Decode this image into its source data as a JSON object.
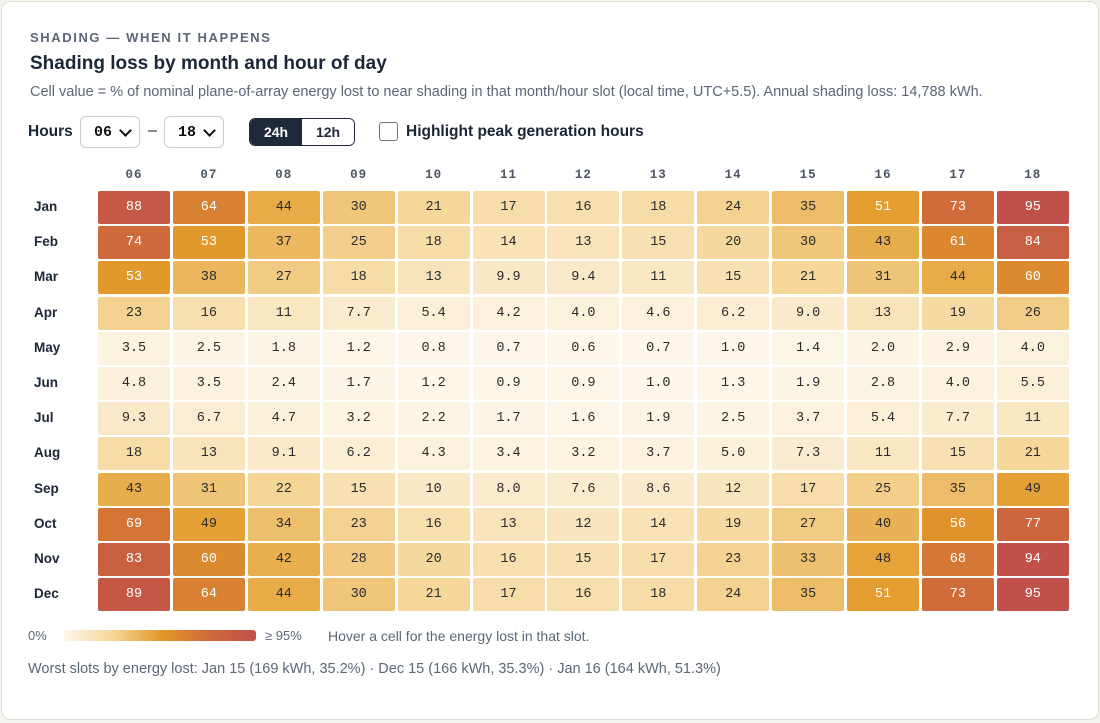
{
  "header": {
    "eyebrow": "SHADING — WHEN IT HAPPENS",
    "title": "Shading loss by month and hour of day",
    "description": "Cell value = % of nominal plane-of-array energy lost to near shading in that month/hour slot (local time, UTC+5.5). Annual shading loss: 14,788 kWh."
  },
  "controls": {
    "hours_label": "Hours",
    "hour_from": "06",
    "separator": "–",
    "hour_to": "18",
    "format_24h": "24h",
    "format_12h": "12h",
    "format_selected": "24h",
    "highlight_label": "Highlight peak generation hours",
    "highlight_checked": false
  },
  "chart_data": {
    "type": "heatmap",
    "x": [
      "06",
      "07",
      "08",
      "09",
      "10",
      "11",
      "12",
      "13",
      "14",
      "15",
      "16",
      "17",
      "18"
    ],
    "y": [
      "Jan",
      "Feb",
      "Mar",
      "Apr",
      "May",
      "Jun",
      "Jul",
      "Aug",
      "Sep",
      "Oct",
      "Nov",
      "Dec"
    ],
    "values": [
      [
        "88",
        "64",
        "44",
        "30",
        "21",
        "17",
        "16",
        "18",
        "24",
        "35",
        "51",
        "73",
        "95"
      ],
      [
        "74",
        "53",
        "37",
        "25",
        "18",
        "14",
        "13",
        "15",
        "20",
        "30",
        "43",
        "61",
        "84"
      ],
      [
        "53",
        "38",
        "27",
        "18",
        "13",
        "9.9",
        "9.4",
        "11",
        "15",
        "21",
        "31",
        "44",
        "60"
      ],
      [
        "23",
        "16",
        "11",
        "7.7",
        "5.4",
        "4.2",
        "4.0",
        "4.6",
        "6.2",
        "9.0",
        "13",
        "19",
        "26"
      ],
      [
        "3.5",
        "2.5",
        "1.8",
        "1.2",
        "0.8",
        "0.7",
        "0.6",
        "0.7",
        "1.0",
        "1.4",
        "2.0",
        "2.9",
        "4.0"
      ],
      [
        "4.8",
        "3.5",
        "2.4",
        "1.7",
        "1.2",
        "0.9",
        "0.9",
        "1.0",
        "1.3",
        "1.9",
        "2.8",
        "4.0",
        "5.5"
      ],
      [
        "9.3",
        "6.7",
        "4.7",
        "3.2",
        "2.2",
        "1.7",
        "1.6",
        "1.9",
        "2.5",
        "3.7",
        "5.4",
        "7.7",
        "11"
      ],
      [
        "18",
        "13",
        "9.1",
        "6.2",
        "4.3",
        "3.4",
        "3.2",
        "3.7",
        "5.0",
        "7.3",
        "11",
        "15",
        "21"
      ],
      [
        "43",
        "31",
        "22",
        "15",
        "10",
        "8.0",
        "7.6",
        "8.6",
        "12",
        "17",
        "25",
        "35",
        "49"
      ],
      [
        "69",
        "49",
        "34",
        "23",
        "16",
        "13",
        "12",
        "14",
        "19",
        "27",
        "40",
        "56",
        "77"
      ],
      [
        "83",
        "60",
        "42",
        "28",
        "20",
        "16",
        "15",
        "17",
        "23",
        "33",
        "48",
        "68",
        "94"
      ],
      [
        "89",
        "64",
        "44",
        "30",
        "21",
        "17",
        "16",
        "18",
        "24",
        "35",
        "51",
        "73",
        "95"
      ]
    ],
    "color_min": 0,
    "color_max": 95,
    "color_scale": [
      "#fdf8ee",
      "#f5d79a",
      "#e39b2a",
      "#cf6a3a",
      "#c0504a"
    ]
  },
  "legend": {
    "min_label": "0%",
    "max_label": "≥ 95%",
    "hint": "Hover a cell for the energy lost in that slot."
  },
  "footer": {
    "worst_slots": "Worst slots by energy lost: Jan 15 (169 kWh, 35.2%) · Dec 15 (166 kWh, 35.3%) · Jan 16 (164 kWh, 51.3%)"
  }
}
